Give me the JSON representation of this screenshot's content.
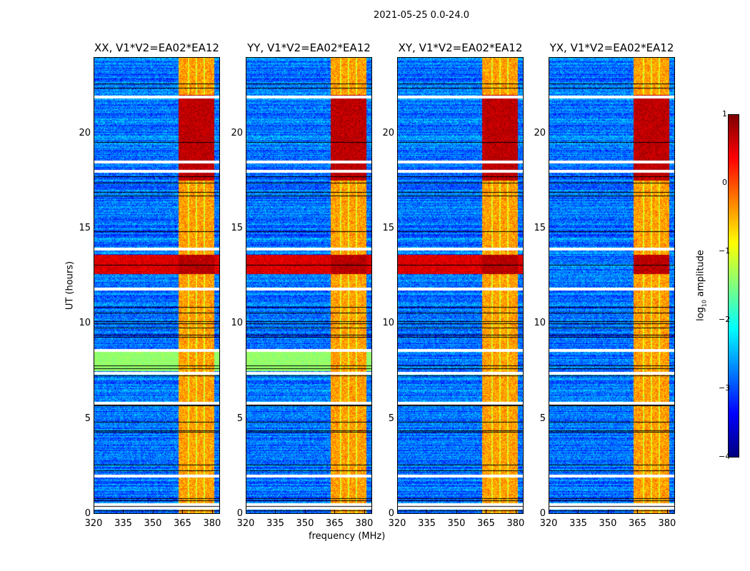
{
  "chart_data": {
    "type": "heatmap",
    "title": "2021-05-25 0.0-24.0",
    "xlabel": "frequency (MHz)",
    "ylabel": "UT (hours)",
    "xlim": [
      320,
      384
    ],
    "ylim": [
      0,
      24
    ],
    "xticks": [
      "320",
      "335",
      "350",
      "365",
      "380"
    ],
    "yticks": [
      "0",
      "5",
      "10",
      "15",
      "20"
    ],
    "panels": [
      {
        "title": "XX, V1*V2=EA02*EA12"
      },
      {
        "title": "YY, V1*V2=EA02*EA12"
      },
      {
        "title": "XY, V1*V2=EA02*EA12"
      },
      {
        "title": "YX, V1*V2=EA02*EA12"
      }
    ],
    "colorbar": {
      "label_prefix": "log",
      "label_sub": "10",
      "label_suffix": " amplitude",
      "colormap": "jet",
      "range": [
        -4,
        1
      ],
      "ticks": [
        "1",
        "0",
        "−1",
        "−2",
        "−3",
        "−4"
      ]
    },
    "features": {
      "background_log_amp": -2.8,
      "rfi_band_mhz": [
        363,
        381
      ],
      "rfi_band_log_amp": -0.4,
      "strong_rfi_hours": [
        [
          12.6,
          13.6
        ],
        [
          17.5,
          22.0
        ]
      ],
      "strong_rfi_log_amp": 0.6,
      "flagged_hours": [
        0.3,
        0.5,
        2.0,
        5.8,
        7.4,
        8.6,
        11.8,
        13.9,
        18.0,
        18.5,
        21.9
      ]
    }
  }
}
